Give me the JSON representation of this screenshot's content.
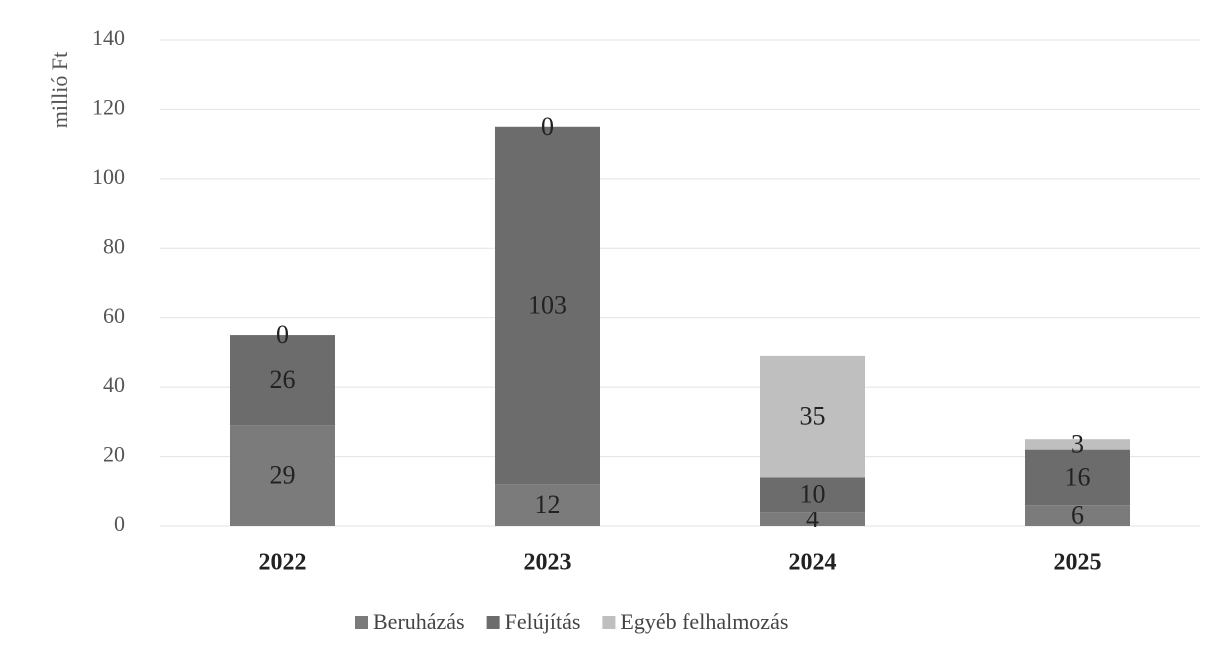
{
  "chart_data": {
    "type": "stacked_bar",
    "y_axis_label": "millió Ft",
    "categories": [
      "2022",
      "2023",
      "2024",
      "2025"
    ],
    "series": [
      {
        "name": "Beruházás",
        "color": "#7b7b7b",
        "values": [
          29,
          12,
          4,
          6
        ]
      },
      {
        "name": "Felújítás",
        "color": "#6c6c6c",
        "values": [
          26,
          103,
          10,
          16
        ]
      },
      {
        "name": "Egyéb felhalmozás",
        "color": "#bfbfbf",
        "values": [
          0,
          0,
          35,
          3
        ]
      }
    ],
    "ylim": [
      0,
      140
    ],
    "yticks": [
      0,
      20,
      40,
      60,
      80,
      100,
      120,
      140
    ],
    "grid": true,
    "legend": "bottom"
  }
}
